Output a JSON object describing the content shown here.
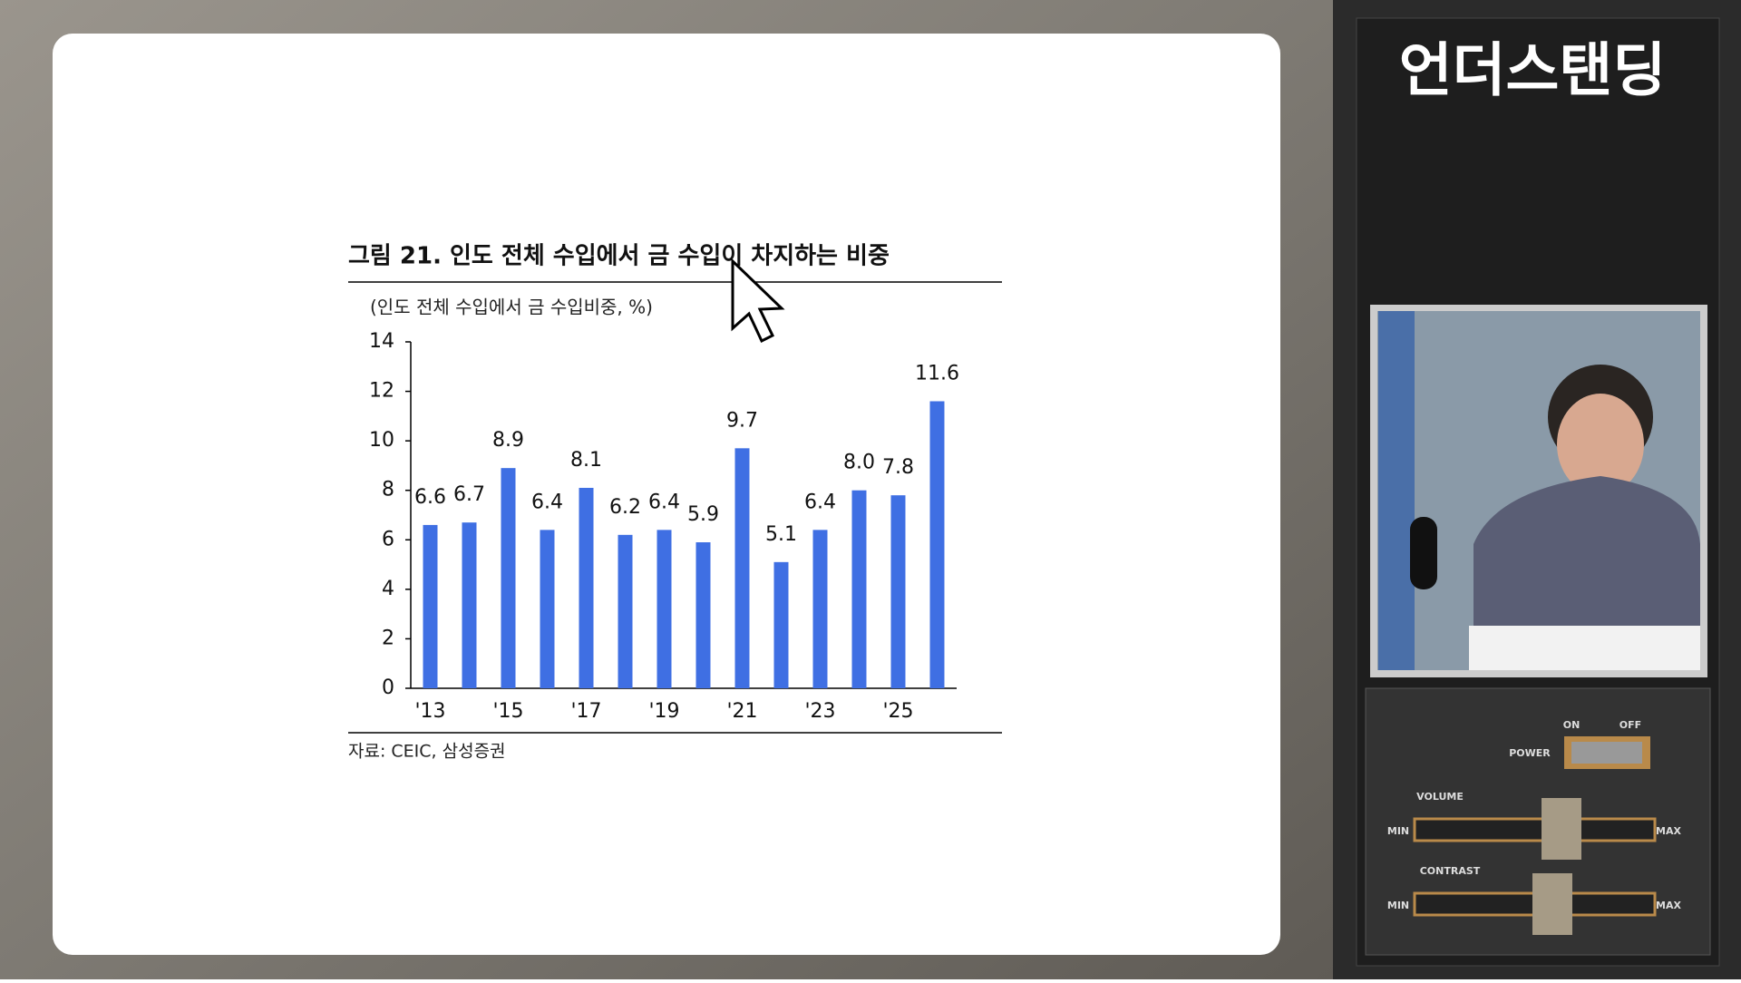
{
  "chart_data": {
    "type": "bar",
    "title": "그림 21.  인도 전체 수입에서 금 수입이 차지하는 비중",
    "subtitle": "(인도 전체 수입에서 금 수입비중, %)",
    "source": "자료: CEIC, 삼성증권",
    "categories": [
      "'13",
      null,
      "'15",
      null,
      "'17",
      null,
      "'19",
      null,
      "'21",
      null,
      "'23",
      null,
      "'25",
      null
    ],
    "values": [
      6.6,
      6.7,
      8.9,
      6.4,
      8.1,
      6.2,
      6.4,
      5.9,
      9.7,
      5.1,
      6.4,
      8.0,
      7.8,
      11.6
    ],
    "value_labels": [
      "6.6",
      "6.7",
      "8.9",
      "6.4",
      "8.1",
      "6.2",
      "6.4",
      "5.9",
      "9.7",
      "5.1",
      "6.4",
      "8.0",
      "7.8",
      "11.6"
    ],
    "color": "#3f6fe3",
    "ylim": [
      0,
      14
    ],
    "yticks": [
      0,
      2,
      4,
      6,
      8,
      10,
      12,
      14
    ],
    "grid": false
  },
  "overlay": {
    "brand": "언더스탠딩",
    "controls": {
      "on": "ON",
      "off": "OFF",
      "power": "POWER",
      "volume": "VOLUME",
      "contrast": "CONTRAST",
      "min": "MIN",
      "max": "MAX"
    }
  }
}
